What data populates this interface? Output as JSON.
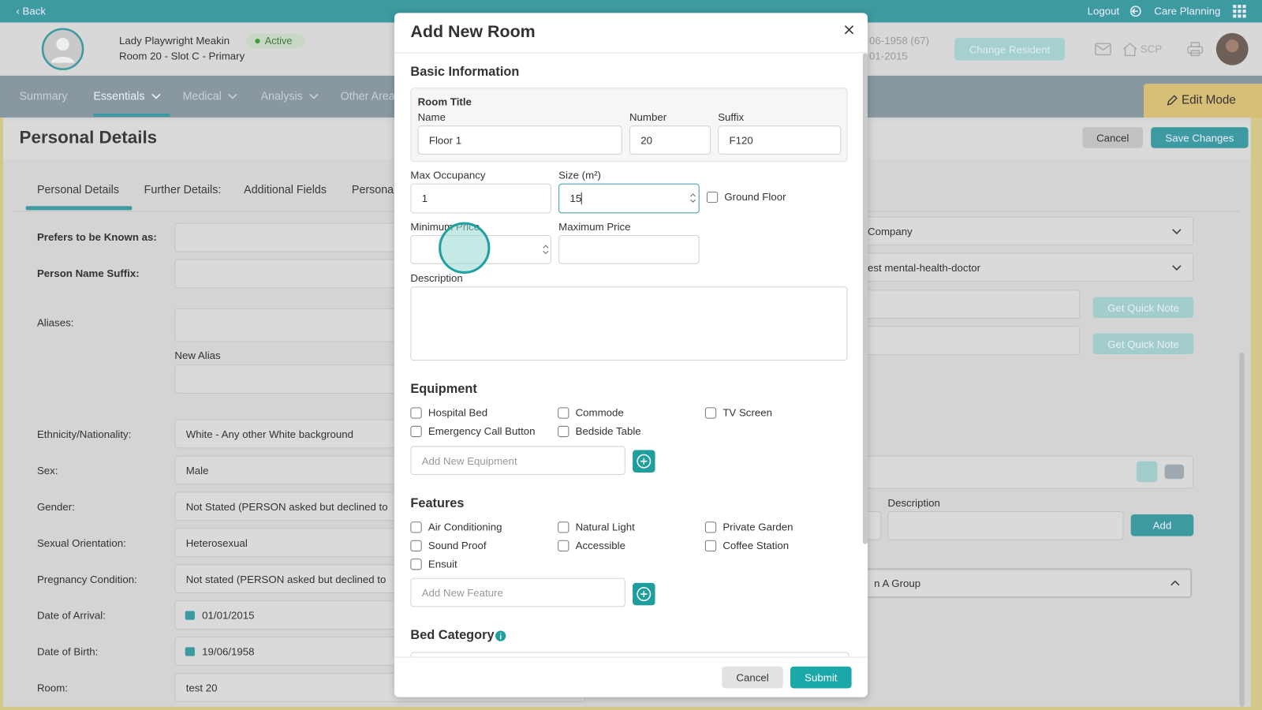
{
  "topbar": {
    "back": "Back",
    "logout": "Logout",
    "care_planning": "Care Planning"
  },
  "header": {
    "name": "Lady Playwright Meakin",
    "status": "Active",
    "room": "Room 20 - Slot C - Primary",
    "dob": "06-1958 (67)",
    "arrival": "01-2015",
    "change_resident": "Change Resident",
    "scp": "SCP"
  },
  "nav": {
    "items": [
      "Summary",
      "Essentials",
      "Medical",
      "Analysis",
      "Other Area"
    ],
    "edit_mode": "Edit Mode"
  },
  "page": {
    "title": "Personal Details",
    "cancel": "Cancel",
    "save": "Save Changes",
    "tabs": [
      "Personal Details",
      "Further Details:",
      "Additional Fields",
      "Persona"
    ]
  },
  "form": {
    "prefers": "Prefers to be Known as:",
    "suffix": "Person Name Suffix:",
    "aliases": "Aliases:",
    "new_alias": "New Alias",
    "rows": [
      {
        "label": "Ethnicity/Nationality:",
        "value": "White - Any other White background"
      },
      {
        "label": "Sex:",
        "value": "Male"
      },
      {
        "label": "Gender:",
        "value": "Not Stated (PERSON asked but declined to"
      },
      {
        "label": "Sexual Orientation:",
        "value": "Heterosexual"
      },
      {
        "label": "Pregnancy Condition:",
        "value": "Not stated (PERSON asked but declined to"
      },
      {
        "label": "Date of Arrival:",
        "value": "01/01/2015"
      },
      {
        "label": "Date of Birth:",
        "value": "19/06/1958"
      },
      {
        "label": "Room:",
        "value": "test 20"
      }
    ]
  },
  "right_panel": {
    "company": "Company",
    "doctor": "est mental-health-doctor",
    "quick_note": [
      "Get Quick Note",
      "Get Quick Note"
    ],
    "description": "Description",
    "add": "Add",
    "group": "n A Group"
  },
  "modal": {
    "title": "Add New Room",
    "basic_information": "Basic Information",
    "room_title": "Room Title",
    "title_fields": [
      {
        "label": "Name",
        "value": "Floor 1"
      },
      {
        "label": "Number",
        "value": "20"
      },
      {
        "label": "Suffix",
        "value": "F120"
      }
    ],
    "max_occupancy": {
      "label": "Max Occupancy",
      "value": "1"
    },
    "size": {
      "label": "Size (m²)",
      "value": "15"
    },
    "ground_floor": "Ground Floor",
    "minimum_price": "Minimum Price",
    "maximum_price": "Maximum Price",
    "description": "Description",
    "equipment": {
      "heading": "Equipment",
      "items": [
        "Hospital Bed",
        "Commode",
        "TV Screen",
        "Emergency Call Button",
        "Bedside Table"
      ],
      "placeholder": "Add New Equipment"
    },
    "features": {
      "heading": "Features",
      "items": [
        "Air Conditioning",
        "Natural Light",
        "Private Garden",
        "Sound Proof",
        "Accessible",
        "Coffee Station",
        "Ensuit"
      ],
      "placeholder": "Add New Feature"
    },
    "bed_category": "Bed Category",
    "cancel": "Cancel",
    "submit": "Submit"
  }
}
